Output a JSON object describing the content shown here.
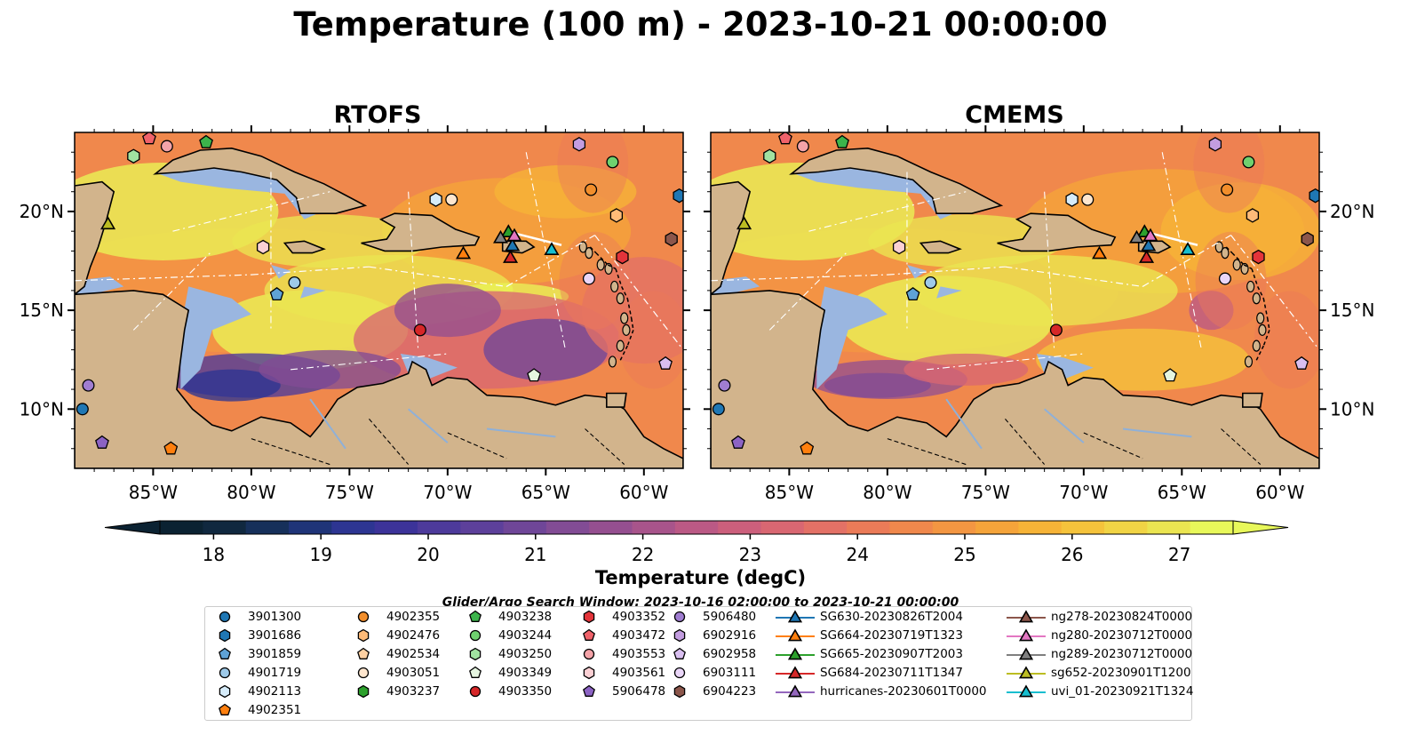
{
  "title": "Temperature (100 m) - 2023-10-21 00:00:00",
  "panels": [
    {
      "title": "RTOFS"
    },
    {
      "title": "CMEMS"
    }
  ],
  "chart_data": {
    "type": "heatmap",
    "title": "Temperature (100 m) - 2023-10-21 00:00:00",
    "subplots": [
      "RTOFS",
      "CMEMS"
    ],
    "xlim": [
      -89,
      -58
    ],
    "ylim": [
      7,
      24
    ],
    "x_ticks": [
      -85,
      -80,
      -75,
      -70,
      -65,
      -60
    ],
    "x_tick_labels": [
      "85°W",
      "80°W",
      "75°W",
      "70°W",
      "65°W",
      "60°W"
    ],
    "y_ticks": [
      10,
      15,
      20
    ],
    "y_tick_labels": [
      "10°N",
      "15°N",
      "20°N"
    ],
    "colorbar": {
      "label": "Temperature (degC)",
      "range": [
        17.5,
        27.5
      ],
      "ticks": [
        18,
        19,
        20,
        21,
        22,
        23,
        24,
        25,
        26,
        27
      ],
      "extend": "both",
      "colors": [
        "#0b2232",
        "#10283f",
        "#16305a",
        "#1f3478",
        "#2d3592",
        "#3c3399",
        "#4d3a9b",
        "#5d409b",
        "#6f4698",
        "#824c95",
        "#954f90",
        "#a8548b",
        "#bb5985",
        "#cc5f7c",
        "#d96772",
        "#e37166",
        "#eb7b58",
        "#f0884c",
        "#f39642",
        "#f5a43a",
        "#f6b337",
        "#f5c33b",
        "#f1d445",
        "#ebe551",
        "#e8f85a"
      ]
    },
    "legend_title": "Glider/Argo Search Window: 2023-10-16 02:00:00 to 2023-10-21 00:00:00",
    "series": [
      {
        "name": "3901300",
        "marker": "circle",
        "color": "#1f77b4",
        "points": [
          [
            -88.6,
            10.0
          ]
        ]
      },
      {
        "name": "3901686",
        "marker": "hexagon",
        "color": "#1f77b4",
        "points": [
          [
            -58.2,
            20.8
          ]
        ]
      },
      {
        "name": "3901859",
        "marker": "pentagon",
        "color": "#5fa2d6",
        "points": [
          [
            -78.7,
            15.8
          ]
        ]
      },
      {
        "name": "4901719",
        "marker": "circle",
        "color": "#9ecae9",
        "points": [
          [
            -77.8,
            16.4
          ]
        ]
      },
      {
        "name": "4902113",
        "marker": "hexagon",
        "color": "#d6ecfa",
        "points": [
          [
            -70.6,
            20.6
          ]
        ]
      },
      {
        "name": "4902351",
        "marker": "pentagon",
        "color": "#ff7f0e",
        "points": [
          [
            -84.1,
            8.0
          ]
        ]
      },
      {
        "name": "4902355",
        "marker": "circle",
        "color": "#f28e2b",
        "points": [
          [
            -62.7,
            21.1
          ]
        ]
      },
      {
        "name": "4902476",
        "marker": "hexagon",
        "color": "#ffbb78",
        "points": [
          [
            -61.4,
            19.8
          ]
        ]
      },
      {
        "name": "4902534",
        "marker": "pentagon",
        "color": "#fdd0a2",
        "points": [
          []
        ]
      },
      {
        "name": "4903051",
        "marker": "circle",
        "color": "#fee6ce",
        "points": [
          [
            -69.8,
            20.6
          ]
        ]
      },
      {
        "name": "4903237",
        "marker": "hexagon",
        "color": "#2ca02c",
        "points": [
          []
        ]
      },
      {
        "name": "4903238",
        "marker": "pentagon",
        "color": "#3cb44b",
        "points": [
          [
            -82.3,
            23.5
          ]
        ]
      },
      {
        "name": "4903244",
        "marker": "circle",
        "color": "#6fd16f",
        "points": [
          [
            -61.6,
            22.5
          ]
        ]
      },
      {
        "name": "4903250",
        "marker": "hexagon",
        "color": "#a1e3a1",
        "points": [
          [
            -86.0,
            22.8
          ]
        ]
      },
      {
        "name": "4903349",
        "marker": "pentagon",
        "color": "#e5f5e0",
        "points": [
          [
            -65.6,
            11.7
          ]
        ]
      },
      {
        "name": "4903350",
        "marker": "circle",
        "color": "#d62728",
        "points": [
          [
            -71.4,
            14.0
          ]
        ]
      },
      {
        "name": "4903352",
        "marker": "hexagon",
        "color": "#e3343a",
        "points": [
          [
            -61.1,
            17.7
          ]
        ]
      },
      {
        "name": "4903472",
        "marker": "pentagon",
        "color": "#f0626a",
        "points": [
          [
            -85.2,
            23.7
          ]
        ]
      },
      {
        "name": "4903553",
        "marker": "circle",
        "color": "#f4a3a8",
        "points": [
          [
            -84.3,
            23.3
          ]
        ]
      },
      {
        "name": "4903561",
        "marker": "hexagon",
        "color": "#fbd0d4",
        "points": [
          [
            -79.4,
            18.2
          ]
        ]
      },
      {
        "name": "5906478",
        "marker": "pentagon",
        "color": "#8c63c4",
        "points": [
          [
            -87.6,
            8.3
          ]
        ]
      },
      {
        "name": "5906480",
        "marker": "circle",
        "color": "#a07dd1",
        "points": [
          [
            -88.3,
            11.2
          ]
        ]
      },
      {
        "name": "6902916",
        "marker": "hexagon",
        "color": "#c39de0",
        "points": [
          [
            -63.3,
            23.4
          ]
        ]
      },
      {
        "name": "6902958",
        "marker": "pentagon",
        "color": "#d9bff0",
        "points": [
          [
            -58.9,
            12.3
          ]
        ]
      },
      {
        "name": "6903111",
        "marker": "circle",
        "color": "#ead6f8",
        "points": [
          [
            -62.8,
            16.6
          ]
        ]
      },
      {
        "name": "6904223",
        "marker": "hexagon",
        "color": "#8c564b",
        "points": [
          [
            -58.6,
            18.6
          ]
        ]
      },
      {
        "name": "SG630-20230826T2004",
        "marker": "triangle",
        "color": "#1f77b4",
        "points": [
          [
            -66.7,
            18.3
          ]
        ]
      },
      {
        "name": "SG664-20230719T1323",
        "marker": "triangle",
        "color": "#ff7f0e",
        "points": [
          [
            -69.2,
            17.9
          ]
        ]
      },
      {
        "name": "SG665-20230907T2003",
        "marker": "triangle",
        "color": "#2ca02c",
        "points": [
          [
            -66.9,
            19.0
          ]
        ]
      },
      {
        "name": "SG684-20230711T1347",
        "marker": "triangle",
        "color": "#d62728",
        "points": [
          [
            -66.8,
            17.7
          ]
        ]
      },
      {
        "name": "hurricanes-20230601T0000",
        "marker": "triangle",
        "color": "#9467bd",
        "points": [
          []
        ]
      },
      {
        "name": "ng278-20230824T0000",
        "marker": "triangle",
        "color": "#8c564b",
        "points": [
          []
        ]
      },
      {
        "name": "ng280-20230712T0000",
        "marker": "triangle",
        "color": "#e377c2",
        "points": [
          [
            -66.6,
            18.8
          ]
        ]
      },
      {
        "name": "ng289-20230712T0000",
        "marker": "triangle",
        "color": "#7f7f7f",
        "points": [
          [
            -67.3,
            18.7
          ]
        ]
      },
      {
        "name": "sg652-20230901T1200",
        "marker": "triangle",
        "color": "#bcbd22",
        "points": [
          [
            -87.3,
            19.4
          ]
        ]
      },
      {
        "name": "uvi_01-20230921T1324",
        "marker": "triangle",
        "color": "#17becf",
        "points": [
          [
            -64.7,
            18.1
          ]
        ]
      }
    ]
  },
  "legend_order": [
    [
      "3901300",
      "3901686",
      "3901859",
      "4901719",
      "4902113",
      "4902351"
    ],
    [
      "4902355",
      "4902476",
      "4902534",
      "4903051",
      "4903237"
    ],
    [
      "4903238",
      "4903244",
      "4903250",
      "4903349",
      "4903350"
    ],
    [
      "4903352",
      "4903472",
      "4903553",
      "4903561",
      "5906478"
    ],
    [
      "5906480",
      "6902916",
      "6902958",
      "6903111",
      "6904223"
    ],
    [
      "SG630-20230826T2004",
      "SG664-20230719T1323",
      "SG665-20230907T2003",
      "SG684-20230711T1347",
      "hurricanes-20230601T0000"
    ],
    [
      "ng278-20230824T0000",
      "ng280-20230712T0000",
      "ng289-20230712T0000",
      "sg652-20230901T1200",
      "uvi_01-20230921T1324"
    ]
  ],
  "colors": {
    "land": "#d2b48c",
    "shelf": "#9ab6e0",
    "warm_core": "#e9f556"
  }
}
